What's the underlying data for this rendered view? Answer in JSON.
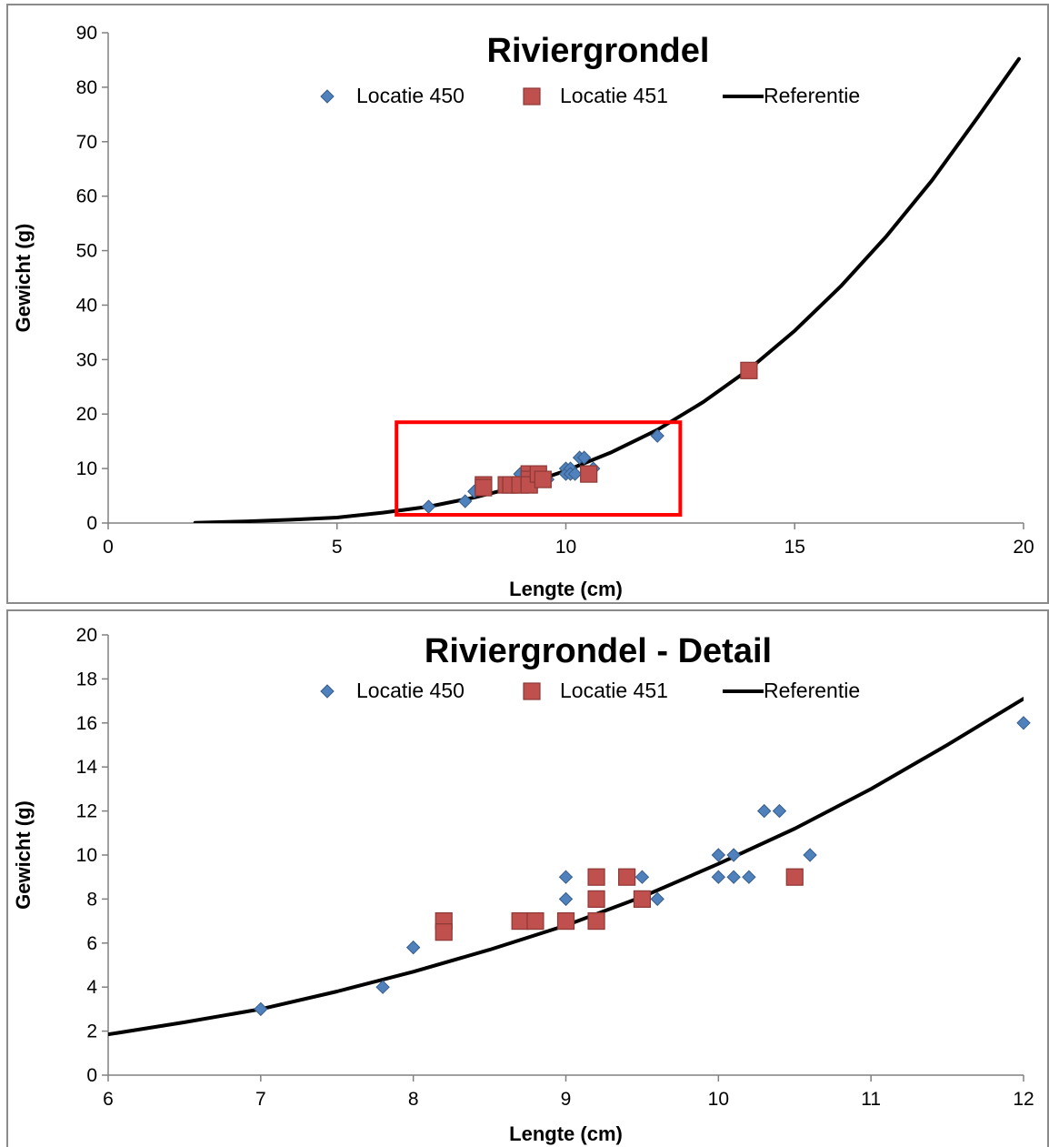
{
  "chart_data": [
    {
      "type": "scatter",
      "title": "Riviergrondel",
      "xlabel": "Lengte (cm)",
      "ylabel": "Gewicht (g)",
      "xlim": [
        0,
        20
      ],
      "ylim": [
        0,
        90
      ],
      "xticks": [
        0,
        5,
        10,
        15,
        20
      ],
      "yticks": [
        0,
        10,
        20,
        30,
        40,
        50,
        60,
        70,
        80,
        90
      ],
      "grid": false,
      "legend_position": "top",
      "series": [
        {
          "name": "Locatie 450",
          "marker": "diamond",
          "color": "#4f81bd",
          "x": [
            7.0,
            7.8,
            8.0,
            9.0,
            9.0,
            9.5,
            9.6,
            10.0,
            10.0,
            10.1,
            10.1,
            10.2,
            10.3,
            10.4,
            10.6,
            12.0
          ],
          "y": [
            3,
            4,
            5.8,
            8,
            9,
            9,
            8,
            10,
            9,
            10,
            9,
            9,
            12,
            12,
            10,
            16
          ]
        },
        {
          "name": "Locatie 451",
          "marker": "square",
          "color": "#c0504d",
          "x": [
            8.2,
            8.2,
            8.7,
            8.8,
            9.0,
            9.2,
            9.2,
            9.2,
            9.4,
            9.5,
            10.5,
            14.0
          ],
          "y": [
            7,
            6.5,
            7,
            7,
            7,
            9,
            8,
            7,
            9,
            8,
            9,
            28
          ]
        },
        {
          "name": "Referentie",
          "type": "line",
          "color": "#000000",
          "x": [
            1.9,
            3,
            4,
            5,
            6,
            7,
            8,
            9,
            10,
            11,
            12,
            13,
            14,
            15,
            16,
            17,
            18,
            19,
            19.9
          ],
          "y": [
            0.04,
            0.3,
            0.6,
            1.0,
            1.9,
            3.0,
            4.7,
            6.8,
            9.6,
            13.0,
            17.1,
            22.2,
            28.2,
            35.3,
            43.4,
            52.6,
            62.9,
            74.5,
            85.2
          ]
        }
      ],
      "annotations": [
        {
          "type": "rectangle",
          "color": "#ff0000",
          "x": [
            6.3,
            12.5
          ],
          "y": [
            1.5,
            18.5
          ]
        }
      ]
    },
    {
      "type": "scatter",
      "title": "Riviergrondel - Detail",
      "xlabel": "Lengte (cm)",
      "ylabel": "Gewicht (g)",
      "xlim": [
        6,
        12
      ],
      "ylim": [
        0,
        20
      ],
      "xticks": [
        6,
        7,
        8,
        9,
        10,
        11,
        12
      ],
      "yticks": [
        0,
        2,
        4,
        6,
        8,
        10,
        12,
        14,
        16,
        18,
        20
      ],
      "grid": false,
      "legend_position": "top",
      "series": [
        {
          "name": "Locatie 450",
          "marker": "diamond",
          "color": "#4f81bd",
          "x": [
            7.0,
            7.8,
            8.0,
            9.0,
            9.0,
            9.5,
            9.6,
            10.0,
            10.0,
            10.1,
            10.1,
            10.2,
            10.3,
            10.4,
            10.6,
            12.0
          ],
          "y": [
            3,
            4,
            5.8,
            8,
            9,
            9,
            8,
            10,
            9,
            10,
            9,
            9,
            12,
            12,
            10,
            16
          ]
        },
        {
          "name": "Locatie 451",
          "marker": "square",
          "color": "#c0504d",
          "x": [
            8.2,
            8.2,
            8.7,
            8.8,
            9.0,
            9.2,
            9.2,
            9.2,
            9.4,
            9.5,
            10.5
          ],
          "y": [
            7,
            6.5,
            7,
            7,
            7,
            9,
            8,
            7,
            9,
            8,
            9
          ]
        },
        {
          "name": "Referentie",
          "type": "line",
          "color": "#000000",
          "x": [
            6,
            6.5,
            7,
            7.5,
            8,
            8.5,
            9,
            9.5,
            10,
            10.5,
            11,
            11.5,
            12
          ],
          "y": [
            1.85,
            2.4,
            3.0,
            3.8,
            4.7,
            5.7,
            6.8,
            8.1,
            9.6,
            11.2,
            13.0,
            15.0,
            17.1
          ]
        }
      ]
    }
  ]
}
